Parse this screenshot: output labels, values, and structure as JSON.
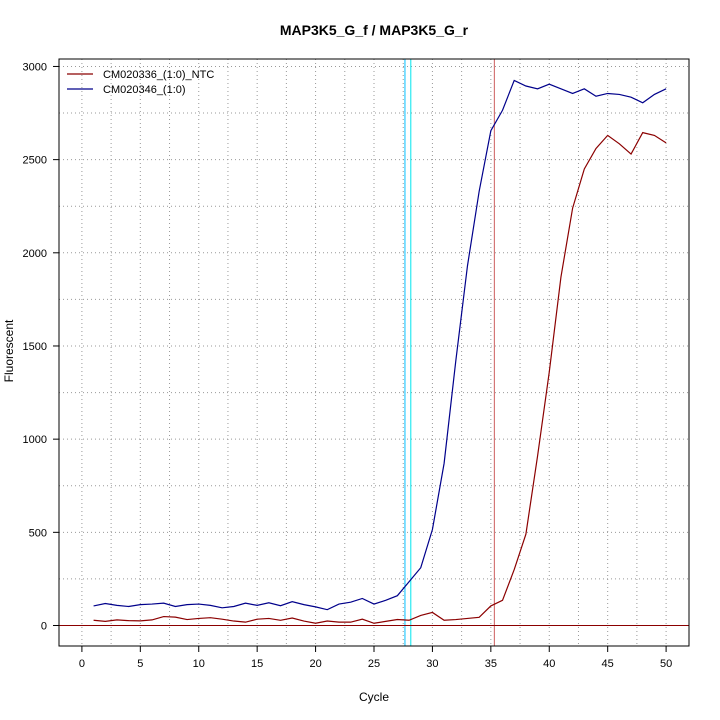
{
  "chart_data": {
    "type": "line",
    "title": "MAP3K5_G_f / MAP3K5_G_r",
    "xlabel": "Cycle",
    "ylabel": "Fluorescent",
    "xlim": [
      -1.96,
      51.96
    ],
    "ylim": [
      -110,
      3040
    ],
    "xticks": [
      0,
      5,
      10,
      15,
      20,
      25,
      30,
      35,
      40,
      45,
      50
    ],
    "yticks": [
      0,
      500,
      1000,
      1500,
      2000,
      2500,
      3000
    ],
    "grid": "dotted",
    "legend": {
      "position": "top-left",
      "entries": [
        "CM020336_(1:0)_NTC",
        "CM020346_(1:0)"
      ]
    },
    "x": [
      1,
      2,
      3,
      4,
      5,
      6,
      7,
      8,
      9,
      10,
      11,
      12,
      13,
      14,
      15,
      16,
      17,
      18,
      19,
      20,
      21,
      22,
      23,
      24,
      25,
      26,
      27,
      28,
      29,
      30,
      31,
      32,
      33,
      34,
      35,
      36,
      37,
      38,
      39,
      40,
      41,
      42,
      43,
      44,
      45,
      46,
      47,
      48,
      49,
      50
    ],
    "series": [
      {
        "name": "CM020336_(1:0)_NTC",
        "color": "#8b0000",
        "values": [
          28,
          22,
          30,
          26,
          25,
          30,
          48,
          45,
          32,
          38,
          42,
          34,
          24,
          18,
          34,
          38,
          28,
          40,
          24,
          12,
          24,
          18,
          18,
          34,
          12,
          22,
          32,
          28,
          54,
          70,
          28,
          32,
          38,
          44,
          105,
          135,
          300,
          490,
          910,
          1360,
          1870,
          2240,
          2450,
          2560,
          2630,
          2585,
          2530,
          2645,
          2630,
          2590
        ]
      },
      {
        "name": "CM020346_(1:0)",
        "color": "#00008b",
        "values": [
          105,
          118,
          108,
          102,
          112,
          115,
          120,
          102,
          112,
          115,
          108,
          95,
          102,
          120,
          108,
          122,
          106,
          128,
          112,
          100,
          85,
          115,
          125,
          145,
          115,
          135,
          160,
          235,
          310,
          515,
          870,
          1420,
          1930,
          2330,
          2655,
          2765,
          2925,
          2895,
          2880,
          2905,
          2880,
          2855,
          2880,
          2840,
          2855,
          2850,
          2835,
          2805,
          2850,
          2880
        ]
      }
    ],
    "vlines": [
      {
        "x": 27.65,
        "color": "#00bfff"
      },
      {
        "x": 28.15,
        "color": "#00e5ee"
      },
      {
        "x": 35.3,
        "color": "#cd5c5c"
      }
    ],
    "hline": {
      "y": 0,
      "color": "#8b0000"
    }
  }
}
